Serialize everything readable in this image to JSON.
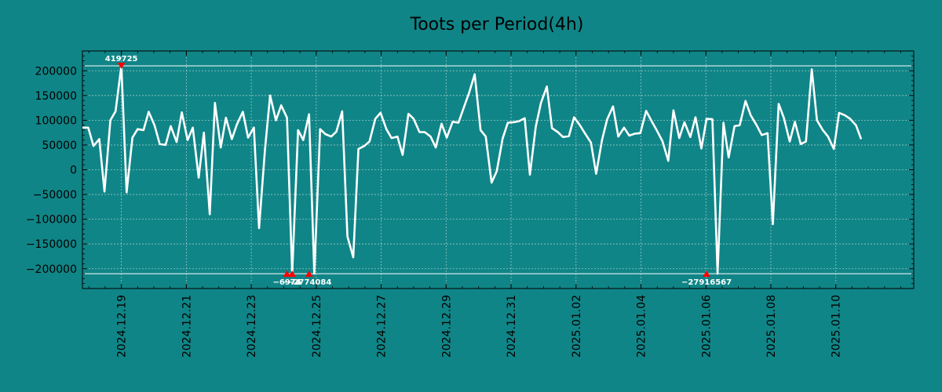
{
  "chart_data": {
    "type": "line",
    "title": "Toots per Period(4h)",
    "xlabel": "",
    "ylabel": "",
    "x_range": [
      0.0,
      128.0
    ],
    "ylim": [
      -240000,
      240000
    ],
    "grid": true,
    "colors": {
      "background": "#108587",
      "line": "#ffffff",
      "grid": "#b8d8d8",
      "marker": "#ff0000",
      "text": "#000000",
      "annotation": "#ffffff"
    },
    "y_ticks": [
      200000,
      150000,
      100000,
      50000,
      0,
      -50000,
      -100000,
      -150000,
      -200000
    ],
    "y_tick_labels": [
      "200000",
      "150000",
      "100000",
      "50000",
      "0",
      "−50000",
      "−100000",
      "−150000",
      "−200000"
    ],
    "x_ticks": [
      {
        "label": "2024.12.19",
        "x": 6
      },
      {
        "label": "2024.12.21",
        "x": 16
      },
      {
        "label": "2024.12.23",
        "x": 26
      },
      {
        "label": "2024.12.25",
        "x": 36
      },
      {
        "label": "2024.12.27",
        "x": 46
      },
      {
        "label": "2024.12.29",
        "x": 56
      },
      {
        "label": "2024.12.31",
        "x": 66
      },
      {
        "label": "2025.01.02",
        "x": 76
      },
      {
        "label": "2025.01.04",
        "x": 86
      },
      {
        "label": "2025.01.06",
        "x": 96
      },
      {
        "label": "2025.01.08",
        "x": 106
      },
      {
        "label": "2025.01.10",
        "x": 116
      }
    ],
    "reference_lines": [
      210000,
      -210000
    ],
    "series": [
      {
        "name": "toots",
        "x": [
          0.0,
          0.9,
          1.7,
          2.6,
          3.4,
          4.3,
          5.1,
          6.0,
          6.8,
          7.7,
          8.5,
          9.4,
          10.2,
          11.1,
          11.9,
          12.8,
          13.6,
          14.5,
          15.3,
          16.2,
          17.0,
          17.9,
          18.7,
          19.6,
          20.4,
          21.3,
          22.1,
          23.0,
          23.8,
          24.7,
          25.5,
          26.4,
          27.2,
          28.1,
          28.9,
          29.8,
          30.6,
          31.5,
          32.3,
          33.2,
          34.0,
          34.9,
          35.7,
          36.6,
          37.4,
          38.3,
          39.1,
          40.0,
          40.8,
          41.7,
          42.5,
          43.4,
          44.2,
          45.1,
          45.9,
          46.8,
          47.6,
          48.5,
          49.3,
          50.2,
          51.0,
          51.9,
          52.7,
          53.6,
          54.4,
          55.3,
          56.1,
          57.0,
          57.9,
          58.7,
          59.6,
          60.4,
          61.3,
          62.1,
          63.0,
          63.8,
          64.7,
          65.5,
          66.4,
          67.2,
          68.1,
          68.9,
          69.8,
          70.6,
          71.5,
          72.3,
          73.2,
          74.0,
          74.9,
          75.7,
          76.6,
          77.4,
          78.3,
          79.1,
          80.0,
          80.8,
          81.7,
          82.5,
          83.4,
          84.2,
          85.1,
          85.9,
          86.8,
          87.6,
          88.5,
          89.3,
          90.2,
          91.0,
          91.9,
          92.7,
          93.6,
          94.4,
          95.3,
          96.1,
          97.0,
          97.8,
          98.7,
          99.5,
          100.4,
          101.2,
          102.1,
          102.9,
          103.8,
          104.6,
          105.5,
          106.3,
          107.2,
          108.0,
          108.9,
          109.7,
          110.6,
          111.4,
          112.3,
          113.1,
          114.0,
          114.8,
          115.7,
          116.5,
          117.4,
          118.2,
          119.1,
          119.9
        ],
        "values": [
          85000,
          85000,
          48000,
          62000,
          -44000,
          100000,
          118000,
          210000,
          -46000,
          65000,
          82000,
          80000,
          117000,
          90000,
          52000,
          50000,
          88000,
          56000,
          116000,
          60000,
          85000,
          -16000,
          75000,
          -90000,
          135000,
          45000,
          105000,
          62000,
          92000,
          117000,
          65000,
          85000,
          -118000,
          40000,
          150000,
          100000,
          130000,
          105000,
          -210000,
          80000,
          60000,
          112000,
          -210000,
          82000,
          72000,
          67000,
          77000,
          118000,
          -135000,
          -177000,
          42000,
          48000,
          57000,
          103000,
          115000,
          82000,
          64000,
          67000,
          30000,
          113000,
          103000,
          76000,
          76000,
          67000,
          45000,
          93000,
          65000,
          97000,
          95000,
          125000,
          158000,
          193000,
          80000,
          67000,
          -26000,
          -3000,
          63000,
          95000,
          96000,
          98000,
          104000,
          -10000,
          87000,
          135000,
          168000,
          84000,
          76000,
          66000,
          68000,
          106000,
          90000,
          73000,
          55000,
          -8000,
          60000,
          102000,
          128000,
          67000,
          85000,
          69000,
          73000,
          74000,
          119000,
          99000,
          78000,
          58000,
          18000,
          120000,
          64000,
          96000,
          66000,
          106000,
          43000,
          103000,
          102000,
          -210000,
          95000,
          25000,
          88000,
          90000,
          139000,
          110000,
          90000,
          70000,
          74000,
          -110000,
          133000,
          105000,
          57000,
          97000,
          52000,
          57000,
          203000,
          100000,
          80000,
          67000,
          42000,
          115000,
          110000,
          103000,
          90000,
          62000
        ]
      }
    ],
    "markers": [
      {
        "x": 6.0,
        "value": 210000,
        "label": "419725"
      },
      {
        "x": 31.5,
        "value": -210000,
        "label": "−6976"
      },
      {
        "x": 32.3,
        "value": -210000,
        "label": "−74"
      },
      {
        "x": 34.9,
        "value": -210000,
        "label": "−2774084"
      },
      {
        "x": 96.1,
        "value": -210000,
        "label": "−27916567"
      }
    ]
  }
}
